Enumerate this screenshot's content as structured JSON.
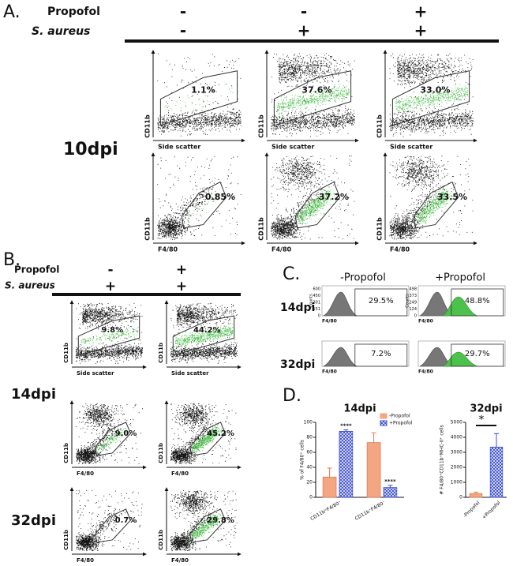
{
  "panel_a": {
    "label": "A.",
    "propofol_label": "Propofol",
    "s_aureus_label": "S. aureus",
    "propofol": [
      "-",
      "-",
      "+"
    ],
    "s_aureus": [
      "-",
      "+",
      "+"
    ],
    "timepoint": "10dpi",
    "plots": [
      [
        {
          "x_label": "Side scatter",
          "y_label": "CD11b",
          "gate": "1.1%"
        },
        {
          "x_label": "Side scatter",
          "y_label": "CD11b",
          "gate": "37.6%"
        },
        {
          "x_label": "Side scatter",
          "y_label": "CD11b",
          "gate": "33.0%"
        }
      ],
      [
        {
          "x_label": "F4/80",
          "y_label": "CD11b",
          "gate": "0.85%"
        },
        {
          "x_label": "F4/80",
          "y_label": "CD11b",
          "gate": "37.2%"
        },
        {
          "x_label": "F4/80",
          "y_label": "CD11b",
          "gate": "33.5%"
        }
      ]
    ]
  },
  "panel_b": {
    "label": "B.",
    "propofol_label": "Propofol",
    "s_aureus_label": "S. aureus",
    "propofol": [
      "-",
      "+"
    ],
    "s_aureus": [
      "+",
      "+"
    ],
    "timepoints": [
      "14dpi",
      "32dpi"
    ],
    "plots": [
      [
        {
          "x_label": "Side scatter",
          "y_label": "CD11b",
          "gate": "9.8%"
        },
        {
          "x_label": "Side scatter",
          "y_label": "CD11b",
          "gate": "44.2%"
        }
      ],
      [
        {
          "x_label": "F4/80",
          "y_label": "CD11b",
          "gate": "9.0%"
        },
        {
          "x_label": "F4/80",
          "y_label": "CD11b",
          "gate": "45.2%"
        }
      ],
      [
        {
          "x_label": "F4/80",
          "y_label": "CD11b",
          "gate": "0.7%"
        },
        {
          "x_label": "F4/80",
          "y_label": "CD11b",
          "gate": "29.8%"
        }
      ]
    ]
  },
  "panel_c": {
    "label": "C.",
    "columns": [
      "-Propofol",
      "+Propofol"
    ],
    "timepoints": [
      "14dpi",
      "32dpi"
    ],
    "plots": [
      [
        {
          "x_label": "F4/80",
          "y_label": "Counts",
          "count_ticks": [
            "600",
            "450",
            "301",
            "151",
            "0"
          ],
          "gate": "29.5%"
        },
        {
          "x_label": "F4/80",
          "y_label": "Counts",
          "count_ticks": [
            "498",
            "373",
            "249",
            "124",
            "0"
          ],
          "gate": "48.8%"
        }
      ],
      [
        {
          "x_label": "F4/80",
          "gate": "7.2%"
        },
        {
          "x_label": "F4/80",
          "gate": "29.7%"
        }
      ]
    ]
  },
  "panel_d": {
    "label": "D."
  },
  "chart_data": [
    {
      "type": "bar",
      "title": "14dpi",
      "y_label": "% of F4/80⁺ cells",
      "categories": [
        "CD11bˡᵒF4/80⁺",
        "CD11b⁺F4/80⁻"
      ],
      "series": [
        {
          "name": "-Propofol",
          "color": "#f4a582",
          "values": [
            27,
            73
          ],
          "errors": [
            12,
            13
          ]
        },
        {
          "name": "+Propofol",
          "color": "#3b4fd1",
          "values": [
            88,
            13
          ],
          "errors": [
            2,
            3
          ]
        }
      ],
      "significance": [
        "****",
        "****"
      ],
      "ylim": [
        0,
        100
      ],
      "yticks": [
        0,
        20,
        40,
        60,
        80,
        100
      ],
      "legend": "upper right"
    },
    {
      "type": "bar",
      "title": "32dpi",
      "y_label": "# F4/80⁺CD11b⁺MHC-II⁺ cells",
      "categories": [
        "-Propofol",
        "+Propofol"
      ],
      "series": [
        {
          "colors": [
            "#f4a582",
            "#3b4fd1"
          ],
          "values": [
            250,
            3350
          ],
          "errors": [
            100,
            900
          ]
        }
      ],
      "significance": "*",
      "ylim": [
        0,
        5000
      ],
      "yticks": [
        0,
        1000,
        2000,
        3000,
        4000,
        5000
      ]
    }
  ]
}
